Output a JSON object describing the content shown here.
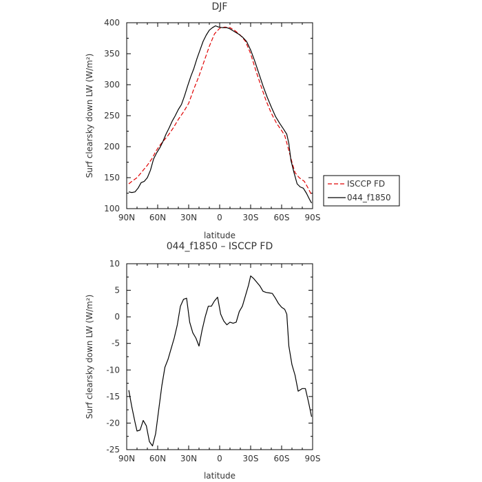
{
  "chart_data": [
    {
      "type": "line",
      "title": "DJF",
      "xlabel": "latitude",
      "ylabel": "Surf clearsky down LW (W/m²)",
      "xlim": [
        90,
        -90
      ],
      "ylim": [
        100,
        400
      ],
      "x_ticks": [
        90,
        60,
        30,
        0,
        -30,
        -60,
        -90
      ],
      "x_tick_labels": [
        "90N",
        "60N",
        "30N",
        "0",
        "30S",
        "60S",
        "90S"
      ],
      "y_ticks": [
        100,
        150,
        200,
        250,
        300,
        350,
        400
      ],
      "y_tick_labels": [
        "100",
        "150",
        "200",
        "250",
        "300",
        "350",
        "400"
      ],
      "legend_position": "right",
      "series": [
        {
          "name": "ISCCP FD",
          "color": "#e00000",
          "dash": "dashed",
          "points": [
            [
              88,
              140
            ],
            [
              85,
              144
            ],
            [
              80,
              150
            ],
            [
              75,
              160
            ],
            [
              70,
              170
            ],
            [
              65,
              182
            ],
            [
              62,
              192
            ],
            [
              58,
              202
            ],
            [
              55,
              208
            ],
            [
              50,
              218
            ],
            [
              45,
              230
            ],
            [
              40,
              244
            ],
            [
              35,
              256
            ],
            [
              30,
              270
            ],
            [
              25,
              293
            ],
            [
              20,
              314
            ],
            [
              15,
              338
            ],
            [
              10,
              362
            ],
            [
              5,
              382
            ],
            [
              0,
              391
            ],
            [
              -5,
              393
            ],
            [
              -10,
              392
            ],
            [
              -15,
              387
            ],
            [
              -20,
              380
            ],
            [
              -25,
              370
            ],
            [
              -30,
              350
            ],
            [
              -35,
              323
            ],
            [
              -40,
              298
            ],
            [
              -45,
              274
            ],
            [
              -50,
              254
            ],
            [
              -55,
              238
            ],
            [
              -60,
              226
            ],
            [
              -63,
              218
            ],
            [
              -66,
              200
            ],
            [
              -70,
              175
            ],
            [
              -73,
              158
            ],
            [
              -77,
              150
            ],
            [
              -82,
              144
            ],
            [
              -86,
              132
            ],
            [
              -89,
              122
            ]
          ]
        },
        {
          "name": "044_f1850",
          "color": "#000000",
          "dash": "solid",
          "points": [
            [
              88,
              127
            ],
            [
              85,
              126
            ],
            [
              82,
              127
            ],
            [
              79,
              133
            ],
            [
              76,
              142
            ],
            [
              73,
              144
            ],
            [
              70,
              150
            ],
            [
              67,
              162
            ],
            [
              64,
              180
            ],
            [
              61,
              190
            ],
            [
              58,
              198
            ],
            [
              55,
              208
            ],
            [
              52,
              220
            ],
            [
              49,
              230
            ],
            [
              46,
              241
            ],
            [
              43,
              250
            ],
            [
              40,
              260
            ],
            [
              37,
              268
            ],
            [
              34,
              282
            ],
            [
              31,
              298
            ],
            [
              28,
              313
            ],
            [
              25,
              326
            ],
            [
              22,
              342
            ],
            [
              19,
              356
            ],
            [
              16,
              370
            ],
            [
              13,
              380
            ],
            [
              10,
              388
            ],
            [
              7,
              392
            ],
            [
              4,
              395
            ],
            [
              1,
              393
            ],
            [
              -3,
              392
            ],
            [
              -7,
              392
            ],
            [
              -10,
              390
            ],
            [
              -14,
              386
            ],
            [
              -18,
              382
            ],
            [
              -22,
              377
            ],
            [
              -26,
              370
            ],
            [
              -30,
              356
            ],
            [
              -34,
              338
            ],
            [
              -38,
              318
            ],
            [
              -42,
              298
            ],
            [
              -46,
              280
            ],
            [
              -50,
              264
            ],
            [
              -54,
              249
            ],
            [
              -58,
              238
            ],
            [
              -62,
              228
            ],
            [
              -65,
              220
            ],
            [
              -67,
              205
            ],
            [
              -69,
              178
            ],
            [
              -72,
              158
            ],
            [
              -75,
              140
            ],
            [
              -78,
              135
            ],
            [
              -81,
              133
            ],
            [
              -84,
              125
            ],
            [
              -87,
              115
            ],
            [
              -89,
              109
            ]
          ]
        }
      ]
    },
    {
      "type": "line",
      "title": "044_f1850 – ISCCP FD",
      "xlabel": "latitude",
      "ylabel": "Surf clearsky down LW (W/m²)",
      "xlim": [
        90,
        -90
      ],
      "ylim": [
        -25,
        10
      ],
      "x_ticks": [
        90,
        60,
        30,
        0,
        -30,
        -60,
        -90
      ],
      "x_tick_labels": [
        "90N",
        "60N",
        "30N",
        "0",
        "30S",
        "60S",
        "90S"
      ],
      "y_ticks": [
        10,
        5,
        0,
        -5,
        -10,
        -15,
        -20,
        -25
      ],
      "y_tick_labels": [
        "10",
        "5",
        "0",
        "-5",
        "-10",
        "-15",
        "-20",
        "-25"
      ],
      "series": [
        {
          "name": "",
          "color": "#000000",
          "dash": "solid",
          "points": [
            [
              88,
              -13.8
            ],
            [
              85,
              -17
            ],
            [
              82,
              -19.8
            ],
            [
              80,
              -21.5
            ],
            [
              77,
              -21.3
            ],
            [
              74,
              -19.5
            ],
            [
              71,
              -20.5
            ],
            [
              68,
              -23.5
            ],
            [
              65,
              -24.3
            ],
            [
              62,
              -22
            ],
            [
              59,
              -17.5
            ],
            [
              56,
              -13
            ],
            [
              53,
              -9.5
            ],
            [
              50,
              -8
            ],
            [
              47,
              -6
            ],
            [
              44,
              -4
            ],
            [
              41,
              -1.5
            ],
            [
              38,
              2
            ],
            [
              35,
              3.3
            ],
            [
              32,
              3.5
            ],
            [
              29,
              -1
            ],
            [
              26,
              -3
            ],
            [
              23,
              -4
            ],
            [
              20,
              -5.5
            ],
            [
              17,
              -2.5
            ],
            [
              14,
              0
            ],
            [
              11,
              2
            ],
            [
              8,
              2
            ],
            [
              5,
              3
            ],
            [
              2,
              3.7
            ],
            [
              -1,
              0.5
            ],
            [
              -4,
              -0.8
            ],
            [
              -7,
              -1.5
            ],
            [
              -10,
              -1
            ],
            [
              -13,
              -1.2
            ],
            [
              -16,
              -1
            ],
            [
              -19,
              1
            ],
            [
              -22,
              2
            ],
            [
              -25,
              4
            ],
            [
              -28,
              6
            ],
            [
              -30,
              7.7
            ],
            [
              -33,
              7.2
            ],
            [
              -36,
              6.5
            ],
            [
              -39,
              5.8
            ],
            [
              -42,
              4.8
            ],
            [
              -45,
              4.6
            ],
            [
              -48,
              4.5
            ],
            [
              -51,
              4.4
            ],
            [
              -54,
              3.5
            ],
            [
              -57,
              2.5
            ],
            [
              -60,
              1.8
            ],
            [
              -63,
              1.4
            ],
            [
              -65,
              0.5
            ],
            [
              -67,
              -5.5
            ],
            [
              -70,
              -9
            ],
            [
              -73,
              -11
            ],
            [
              -76,
              -14
            ],
            [
              -80,
              -13.5
            ],
            [
              -83,
              -13.5
            ],
            [
              -86,
              -16
            ],
            [
              -89,
              -18.8
            ]
          ]
        }
      ]
    }
  ]
}
